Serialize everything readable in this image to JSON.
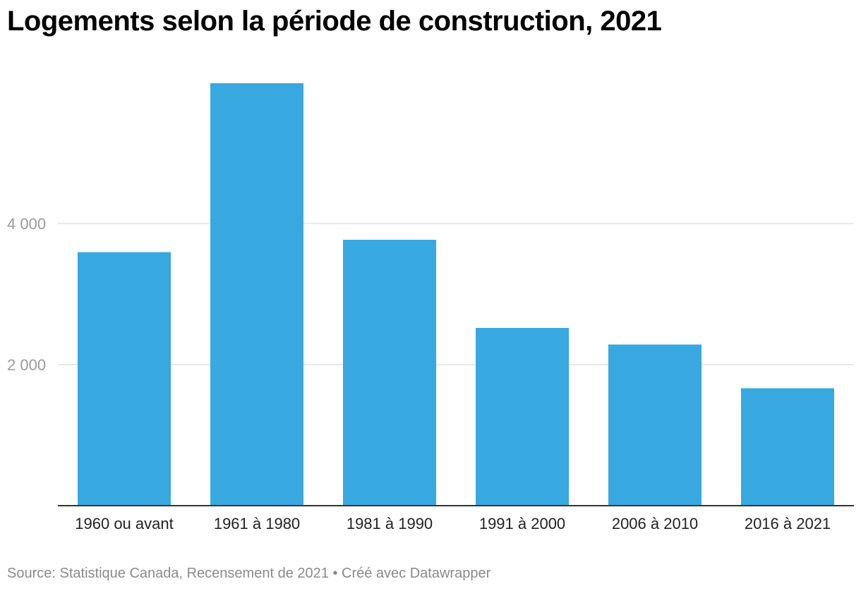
{
  "title": "Logements selon la période de construction, 2021",
  "footer": {
    "source_label": "Source:",
    "source": "Statistique Canada, Recensement de 2021",
    "separator": "•",
    "credit": "Créé avec Datawrapper"
  },
  "colors": {
    "bar": "#38a8e0",
    "grid": "#e0e0e0",
    "axis": "#333333"
  },
  "chart_data": {
    "type": "bar",
    "categories": [
      "1960 ou avant",
      "1961 à 1980",
      "1981 à 1990",
      "1991 à 2000",
      "2006 à 2010",
      "2016 à 2021"
    ],
    "values": [
      3595,
      5990,
      3770,
      2520,
      2285,
      1665
    ],
    "ylim": [
      0,
      6000
    ],
    "yticks": [
      2000,
      4000
    ],
    "ytick_labels": [
      "2 000",
      "4 000"
    ],
    "grid": true,
    "legend": "none"
  }
}
